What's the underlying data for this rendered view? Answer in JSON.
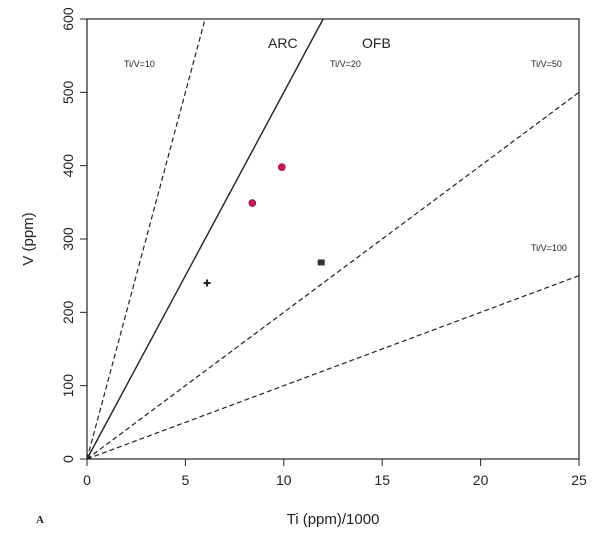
{
  "chart_data": {
    "type": "scatter",
    "panel_label": "A",
    "xlabel": "Ti (ppm)/1000",
    "ylabel": "V (ppm)",
    "xlim": [
      0,
      25
    ],
    "ylim": [
      0,
      600
    ],
    "xticks": [
      0,
      5,
      10,
      15,
      20,
      25
    ],
    "yticks": [
      0,
      100,
      200,
      300,
      400,
      500,
      600
    ],
    "grid": false,
    "ratio_lines": [
      {
        "label": "Ti/V=10",
        "ratio": 10,
        "style": "dashed"
      },
      {
        "label": "Ti/V=20",
        "ratio": 20,
        "style": "solid"
      },
      {
        "label": "Ti/V=50",
        "ratio": 50,
        "style": "dashed"
      },
      {
        "label": "Ti/V=100",
        "ratio": 100,
        "style": "dashed"
      }
    ],
    "region_labels": [
      "ARC",
      "OFB"
    ],
    "points": [
      {
        "x": 6.1,
        "y": 240,
        "marker": "plus",
        "color": "#222222"
      },
      {
        "x": 8.4,
        "y": 349,
        "marker": "circle",
        "color": "#d0115a"
      },
      {
        "x": 9.9,
        "y": 398,
        "marker": "circle",
        "color": "#d0115a"
      },
      {
        "x": 11.9,
        "y": 268,
        "marker": "square",
        "color": "#333333"
      }
    ]
  }
}
